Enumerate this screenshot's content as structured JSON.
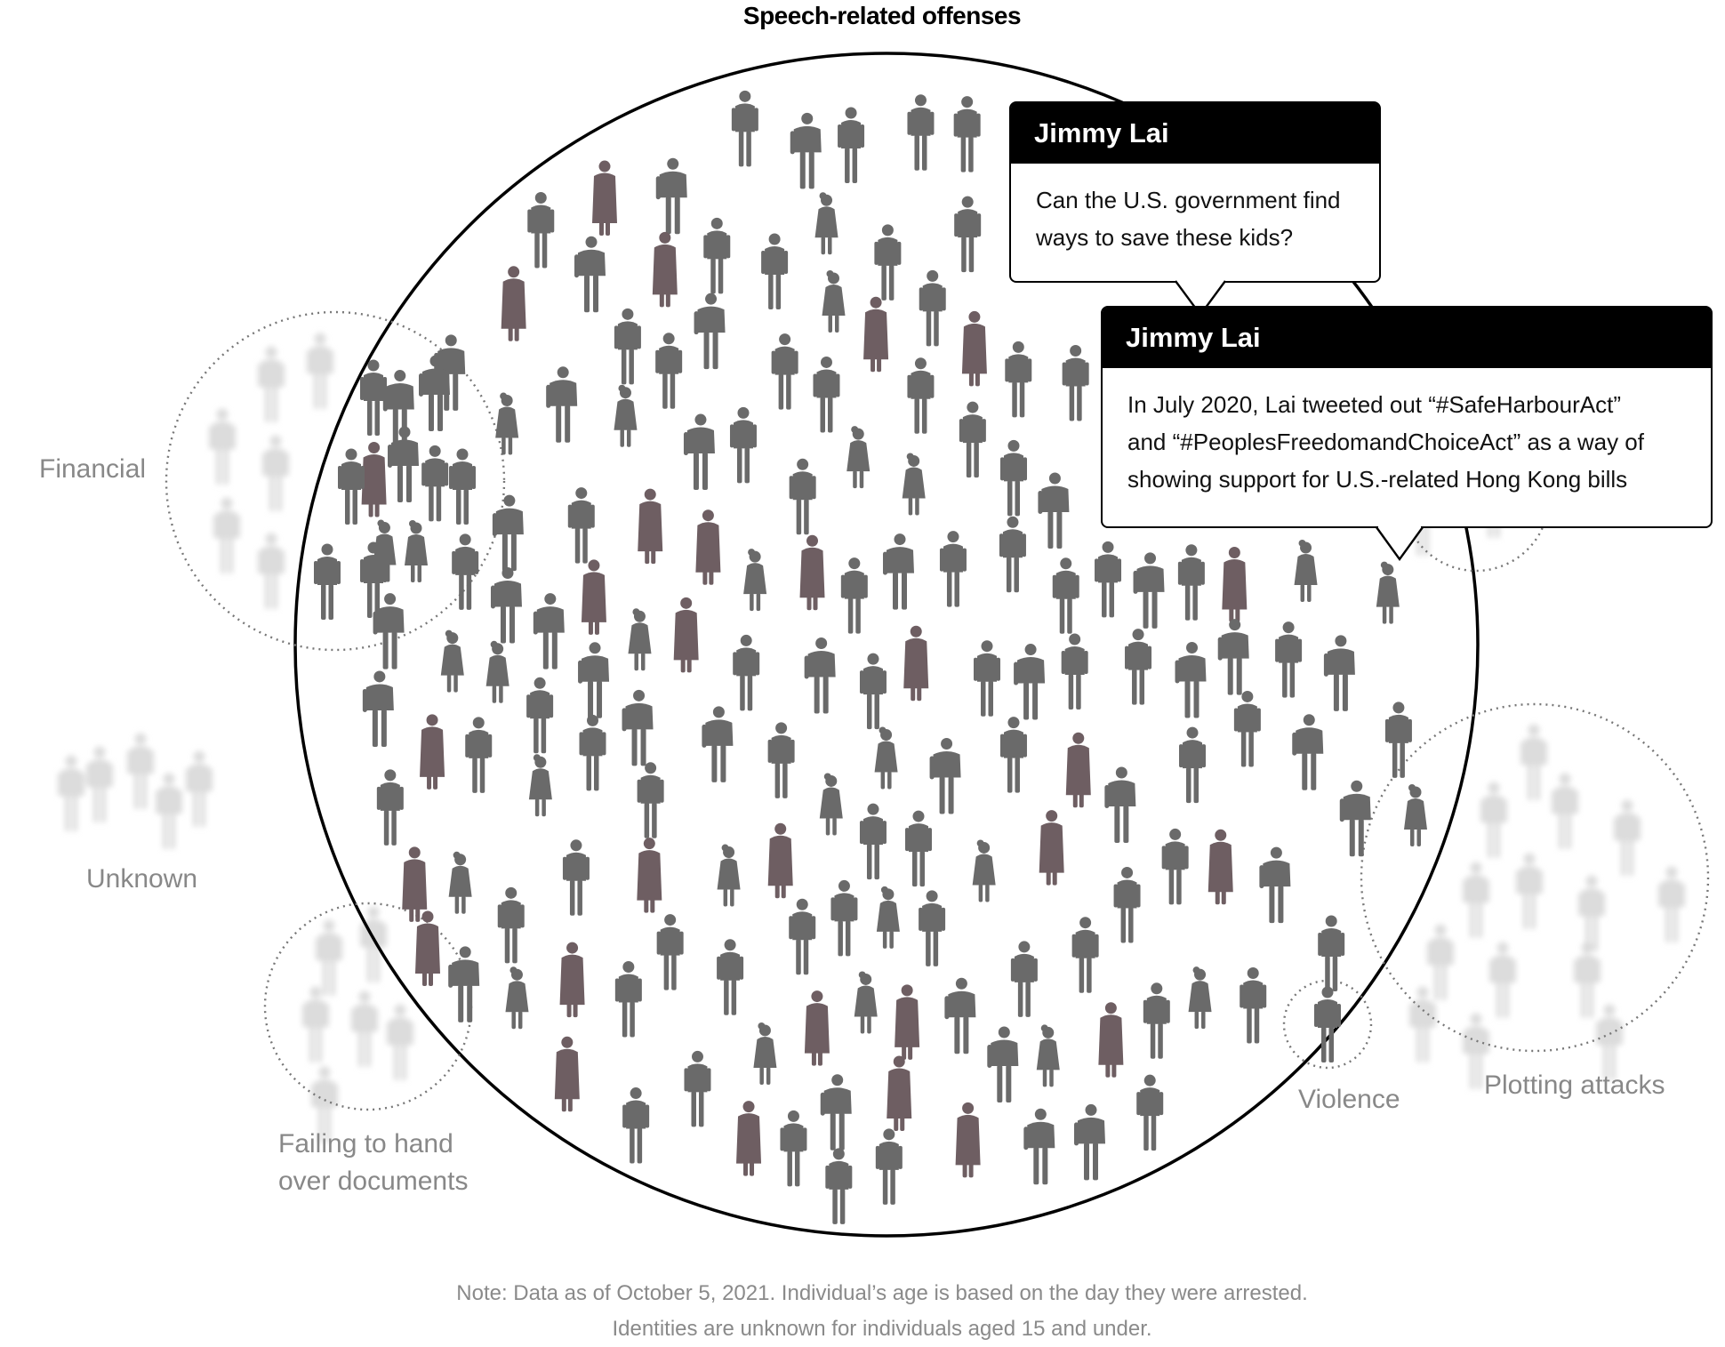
{
  "title": "Speech-related offenses",
  "categories": {
    "financial": "Financial",
    "unknown": "Unknown",
    "failing": [
      "Failing to hand",
      "over documents"
    ],
    "violence": "Violence",
    "plotting": "Plotting attacks"
  },
  "callouts": [
    {
      "name": "Jimmy Lai",
      "lines": [
        "Can the U.S. government find",
        "ways to save these kids?"
      ]
    },
    {
      "name": "Jimmy Lai",
      "lines": [
        "In July 2020, Lai tweeted out “#SafeHarbourAct”",
        "and “#PeoplesFreedomandChoiceAct” as a way of",
        "showing support for U.S.-related Hong Kong bills"
      ]
    }
  ],
  "note": [
    "Note: Data as of October 5, 2021. Individual’s age is based on the day they were arrested.",
    "Identities are unknown for individuals aged 15 and under."
  ],
  "colors": {
    "figure": "#6a6a6a",
    "figure_female": "#6e5e62",
    "ghost": "#d9d9d9",
    "label": "#888888"
  }
}
